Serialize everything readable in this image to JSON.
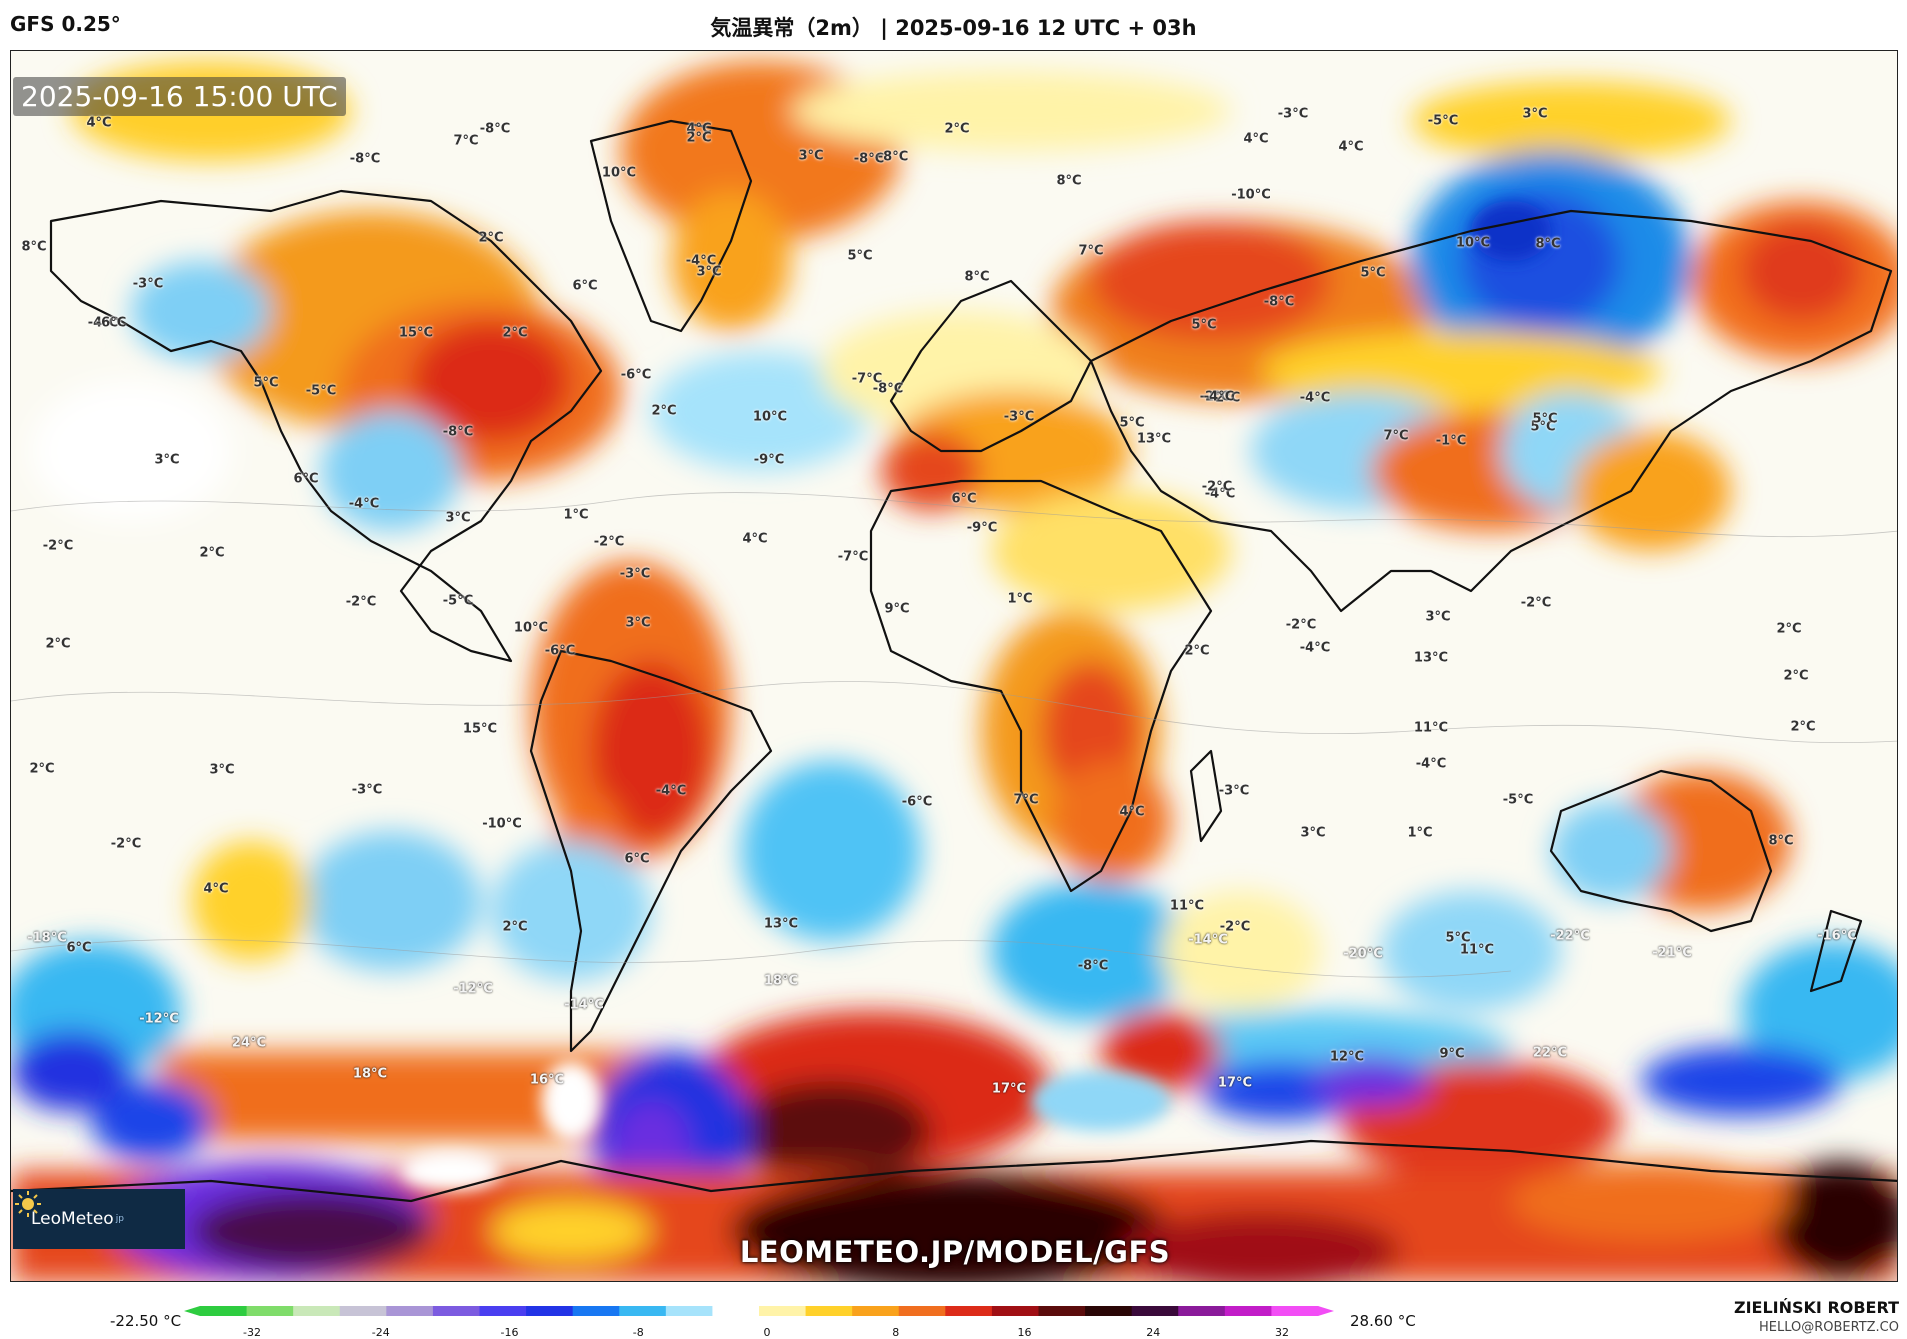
{
  "header": {
    "model": "GFS 0.25°",
    "title": "気温異常（2m） | 2025-09-16 12 UTC + 03h"
  },
  "map": {
    "timestamp": "2025-09-16 15:00 UTC",
    "watermark": "LEOMETEO.JP/MODEL/GFS",
    "logo_text": "LeoMeteo",
    "logo_suffix": "jp",
    "labels": [
      {
        "t": "4°C"
      },
      {
        "t": "-8°C"
      },
      {
        "t": "7°C"
      },
      {
        "t": "4°C"
      },
      {
        "t": "2°C"
      },
      {
        "t": "3°C"
      },
      {
        "t": "-8°C"
      },
      {
        "t": "2°C"
      },
      {
        "t": "4°C"
      },
      {
        "t": "4°C"
      },
      {
        "t": "-3°C"
      },
      {
        "t": "-5°C"
      },
      {
        "t": "3°C"
      },
      {
        "t": "-8°C"
      },
      {
        "t": "10°C"
      },
      {
        "t": "-8°C"
      },
      {
        "t": "-10°C"
      },
      {
        "t": "8°C"
      },
      {
        "t": "-4°C"
      },
      {
        "t": "2°C"
      },
      {
        "t": "3°C"
      },
      {
        "t": "8°C"
      },
      {
        "t": "6°C"
      },
      {
        "t": "-4°C"
      },
      {
        "t": "-3°C"
      },
      {
        "t": "5°C"
      },
      {
        "t": "7°C"
      },
      {
        "t": "8°C"
      },
      {
        "t": "10°C"
      },
      {
        "t": "8°C"
      },
      {
        "t": "5°C"
      },
      {
        "t": "-8°C"
      },
      {
        "t": "-6°C"
      },
      {
        "t": "15°C"
      },
      {
        "t": "2°C"
      },
      {
        "t": "5°C"
      },
      {
        "t": "-5°C"
      },
      {
        "t": "-6°C"
      },
      {
        "t": "-4°C"
      },
      {
        "t": "5°C"
      },
      {
        "t": "5°C"
      },
      {
        "t": "-2°C"
      },
      {
        "t": "2°C"
      },
      {
        "t": "-7°C"
      },
      {
        "t": "-8°C"
      },
      {
        "t": "10°C"
      },
      {
        "t": "-3°C"
      },
      {
        "t": "5°C"
      },
      {
        "t": "13°C"
      },
      {
        "t": "-2°C"
      },
      {
        "t": "-4°C"
      },
      {
        "t": "7°C"
      },
      {
        "t": "-1°C"
      },
      {
        "t": "5°C"
      },
      {
        "t": "-8°C"
      },
      {
        "t": "3°C"
      },
      {
        "t": "6°C"
      },
      {
        "t": "-9°C"
      },
      {
        "t": "6°C"
      },
      {
        "t": "-4°C"
      },
      {
        "t": "-4°C"
      },
      {
        "t": "3°C"
      },
      {
        "t": "1°C"
      },
      {
        "t": "-2°C"
      },
      {
        "t": "-2°C"
      },
      {
        "t": "4°C"
      },
      {
        "t": "2°C"
      },
      {
        "t": "-2°C"
      },
      {
        "t": "-9°C"
      },
      {
        "t": "-7°C"
      },
      {
        "t": "-3°C"
      },
      {
        "t": "-2°C"
      },
      {
        "t": "-5°C"
      },
      {
        "t": "9°C"
      },
      {
        "t": "1°C"
      },
      {
        "t": "2°C"
      },
      {
        "t": "10°C"
      },
      {
        "t": "3°C"
      },
      {
        "t": "-6°C"
      },
      {
        "t": "2°C"
      },
      {
        "t": "-4°C"
      },
      {
        "t": "3°C"
      },
      {
        "t": "2°C"
      },
      {
        "t": "-2°C"
      },
      {
        "t": "13°C"
      },
      {
        "t": "-2°C"
      },
      {
        "t": "2°C"
      },
      {
        "t": "2°C"
      },
      {
        "t": "15°C"
      },
      {
        "t": "3°C"
      },
      {
        "t": "11°C"
      },
      {
        "t": "2°C"
      },
      {
        "t": "-3°C"
      },
      {
        "t": "-4°C"
      },
      {
        "t": "-3°C"
      },
      {
        "t": "-6°C"
      },
      {
        "t": "7°C"
      },
      {
        "t": "4°C"
      },
      {
        "t": "-5°C"
      },
      {
        "t": "-4°C"
      },
      {
        "t": "-2°C"
      },
      {
        "t": "-10°C"
      },
      {
        "t": "6°C"
      },
      {
        "t": "3°C"
      },
      {
        "t": "1°C"
      },
      {
        "t": "8°C"
      },
      {
        "t": "4°C"
      },
      {
        "t": "11°C"
      },
      {
        "t": "13°C"
      },
      {
        "t": "-18°C"
      },
      {
        "t": "6°C"
      },
      {
        "t": "2°C"
      },
      {
        "t": "-14°C"
      },
      {
        "t": "-2°C"
      },
      {
        "t": "5°C"
      },
      {
        "t": "-22°C"
      },
      {
        "t": "-16°C"
      },
      {
        "t": "-20°C"
      },
      {
        "t": "11°C"
      },
      {
        "t": "-21°C"
      },
      {
        "t": "-8°C"
      },
      {
        "t": "-12°C"
      },
      {
        "t": "18°C"
      },
      {
        "t": "-12°C"
      },
      {
        "t": "-14°C"
      },
      {
        "t": "24°C"
      },
      {
        "t": "18°C"
      },
      {
        "t": "16°C"
      },
      {
        "t": "17°C"
      },
      {
        "t": "17°C"
      },
      {
        "t": "12°C"
      },
      {
        "t": "9°C"
      },
      {
        "t": "22°C"
      }
    ]
  },
  "legend": {
    "min_label": "-22.50 °C",
    "max_label": "28.60 °C",
    "ticks": [
      "-32",
      "-24",
      "-16",
      "-8",
      "0",
      "8",
      "16",
      "24",
      "32"
    ],
    "colors": [
      "#2ecc40",
      "#7fdc6a",
      "#c9e8b8",
      "#c7c3d6",
      "#a995d6",
      "#7c5be0",
      "#4a3ef0",
      "#2233e6",
      "#1877f2",
      "#39b8f2",
      "#a6e3fb",
      "#ffffff",
      "#fff3a8",
      "#ffd12a",
      "#f9a21c",
      "#f06e1f",
      "#dc2b19",
      "#a00f14",
      "#5b0c0c",
      "#2a0606",
      "#3a0a3a",
      "#8a1a9a",
      "#c21dc8",
      "#f24df5"
    ]
  },
  "credits": {
    "name": "ZIELIŃSKI ROBERT",
    "email": "HELLO@ROBERTZ.CO"
  }
}
